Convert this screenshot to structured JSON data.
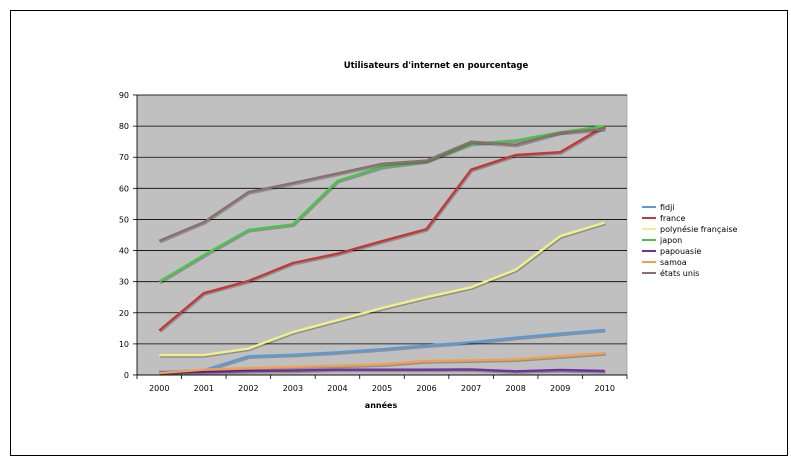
{
  "chart_data": {
    "type": "line",
    "title": "Utilisateurs d'internet en pourcentage",
    "xlabel": "années",
    "ylabel": "",
    "ylim": [
      0,
      90
    ],
    "yticks": [
      "0",
      "10",
      "20",
      "30",
      "40",
      "50",
      "60",
      "70",
      "80",
      "90"
    ],
    "categories": [
      "2000",
      "2001",
      "2002",
      "2003",
      "2004",
      "2005",
      "2006",
      "2007",
      "2008",
      "2009",
      "2010"
    ],
    "grid": true,
    "legend_position": "right",
    "plot_background": "#c0c0c0",
    "series": [
      {
        "name": "fidji",
        "color": "#5b9bd5",
        "values": [
          1,
          1.5,
          6,
          6.5,
          7.3,
          8.3,
          9.5,
          10.5,
          12,
          13.3,
          14.5
        ]
      },
      {
        "name": "france",
        "color": "#c0393b",
        "values": [
          14.3,
          26.3,
          30.2,
          36,
          39,
          43,
          46.9,
          66,
          70.7,
          71.6,
          80
        ]
      },
      {
        "name": "polynésie française",
        "color": "#f0f08a",
        "values": [
          6.4,
          6.4,
          8.5,
          13.8,
          17.6,
          21.5,
          25,
          28.2,
          33.8,
          44.6,
          49
        ]
      },
      {
        "name": "japon",
        "color": "#4cc24c",
        "values": [
          30,
          38.5,
          46.6,
          48.4,
          62.4,
          66.9,
          68.7,
          74.3,
          75.4,
          78,
          80
        ]
      },
      {
        "name": "papouasie",
        "color": "#7030a0",
        "values": [
          0.8,
          0.9,
          1.3,
          1.4,
          1.7,
          1.7,
          1.7,
          1.8,
          1.2,
          1.6,
          1.3
        ]
      },
      {
        "name": "samoa",
        "color": "#f0a050",
        "values": [
          0.6,
          1.7,
          2.2,
          2.6,
          3,
          3.4,
          4.5,
          4.7,
          5,
          6,
          7
        ]
      },
      {
        "name": "états unis",
        "color": "#8b6f6f",
        "values": [
          43.1,
          49.1,
          58.8,
          61.7,
          64.8,
          67.9,
          68.9,
          75,
          74,
          77.9,
          79
        ]
      }
    ]
  }
}
